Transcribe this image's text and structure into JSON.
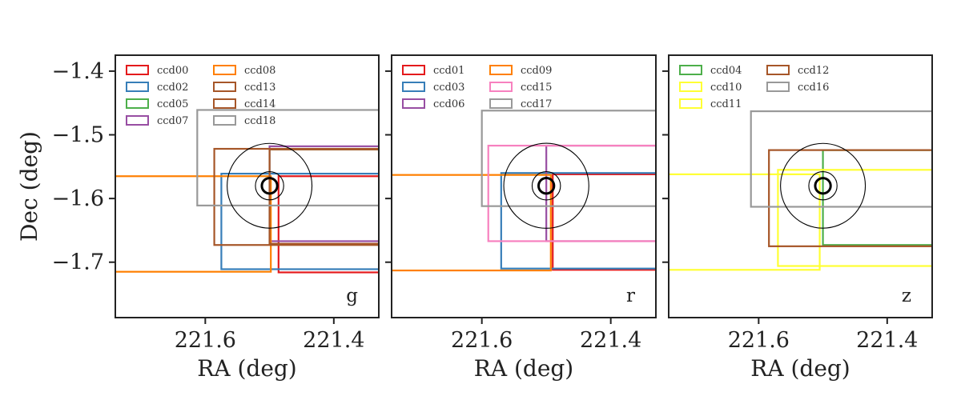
{
  "chart_data": [
    {
      "type": "footprint",
      "band": "g",
      "xlabel": "RA (deg)",
      "ylabel": "Dec (deg)",
      "xlim": [
        221.74,
        221.33
      ],
      "ylim": [
        -1.787,
        -1.375
      ],
      "xticks": [
        221.6,
        221.4
      ],
      "xtick_labels": [
        "221.6",
        "221.4"
      ],
      "yticks": [
        -1.4,
        -1.5,
        -1.6,
        -1.7
      ],
      "ytick_labels": [
        "−1.4",
        "−1.5",
        "−1.6",
        "−1.7"
      ],
      "legend": {
        "position": "top-left",
        "columns": 2
      },
      "series": [
        {
          "name": "ccd00",
          "color": "#e41a1c",
          "rect": [
            221.486,
            221.2,
            -1.716,
            -1.565
          ]
        },
        {
          "name": "ccd02",
          "color": "#377eb8",
          "rect": [
            221.575,
            221.2,
            -1.711,
            -1.561
          ]
        },
        {
          "name": "ccd05",
          "color": "#4daf4a",
          "rect": [
            221.5,
            221.2,
            -1.672,
            -1.523
          ]
        },
        {
          "name": "ccd07",
          "color": "#984ea3",
          "rect": [
            221.5,
            221.2,
            -1.667,
            -1.518
          ]
        },
        {
          "name": "ccd08",
          "color": "#ff7f00",
          "rect": [
            221.9,
            221.498,
            -1.715,
            -1.565
          ]
        },
        {
          "name": "ccd13",
          "color": "#a65628",
          "rect": [
            221.586,
            221.2,
            -1.673,
            -1.522
          ]
        },
        {
          "name": "ccd14",
          "color": "#a65628",
          "rect": [
            221.5,
            221.2,
            -1.671,
            -1.523
          ]
        },
        {
          "name": "ccd18",
          "color": "#999999",
          "rect": [
            221.6125,
            221.2,
            -1.611,
            -1.461
          ]
        }
      ],
      "target": {
        "ra": 221.5,
        "dec": -1.58,
        "radii": [
          0.012,
          0.022,
          0.066
        ]
      }
    },
    {
      "type": "footprint",
      "band": "r",
      "xlabel": "RA (deg)",
      "xlim": [
        221.74,
        221.33
      ],
      "ylim": [
        -1.787,
        -1.375
      ],
      "xticks": [
        221.6,
        221.4
      ],
      "xtick_labels": [
        "221.6",
        "221.4"
      ],
      "legend": {
        "position": "top-left",
        "columns": 2
      },
      "series": [
        {
          "name": "ccd01",
          "color": "#e41a1c",
          "rect": [
            221.49,
            221.2,
            -1.712,
            -1.562
          ]
        },
        {
          "name": "ccd03",
          "color": "#377eb8",
          "rect": [
            221.57,
            221.2,
            -1.71,
            -1.56
          ]
        },
        {
          "name": "ccd06",
          "color": "#984ea3",
          "rect": [
            221.5,
            221.2,
            -1.667,
            -1.517
          ]
        },
        {
          "name": "ccd09",
          "color": "#ff7f00",
          "rect": [
            221.9,
            221.493,
            -1.713,
            -1.563
          ]
        },
        {
          "name": "ccd15",
          "color": "#f781bf",
          "rect": [
            221.59,
            221.2,
            -1.667,
            -1.517
          ]
        },
        {
          "name": "ccd17",
          "color": "#999999",
          "rect": [
            221.6,
            221.2,
            -1.612,
            -1.462
          ]
        }
      ],
      "target": {
        "ra": 221.5,
        "dec": -1.58,
        "radii": [
          0.012,
          0.022,
          0.066
        ]
      }
    },
    {
      "type": "footprint",
      "band": "z",
      "xlabel": "RA (deg)",
      "xlim": [
        221.74,
        221.33
      ],
      "ylim": [
        -1.787,
        -1.375
      ],
      "xticks": [
        221.6,
        221.4
      ],
      "xtick_labels": [
        "221.6",
        "221.4"
      ],
      "legend": {
        "position": "top-left",
        "columns": 2
      },
      "series": [
        {
          "name": "ccd04",
          "color": "#4daf4a",
          "rect": [
            221.5,
            221.2,
            -1.673,
            -1.524
          ]
        },
        {
          "name": "ccd10",
          "color": "#ffff33",
          "rect": [
            221.9,
            221.505,
            -1.712,
            -1.562
          ]
        },
        {
          "name": "ccd11",
          "color": "#ffff33",
          "rect": [
            221.57,
            221.2,
            -1.706,
            -1.555
          ]
        },
        {
          "name": "ccd12",
          "color": "#a65628",
          "rect": [
            221.584,
            221.2,
            -1.675,
            -1.524
          ]
        },
        {
          "name": "ccd16",
          "color": "#999999",
          "rect": [
            221.612,
            221.2,
            -1.613,
            -1.463
          ]
        }
      ],
      "target": {
        "ra": 221.5,
        "dec": -1.58,
        "radii": [
          0.012,
          0.022,
          0.066
        ]
      }
    }
  ]
}
